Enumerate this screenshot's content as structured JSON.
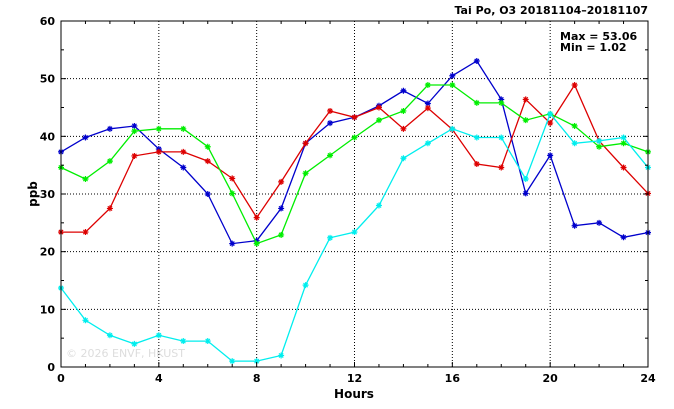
{
  "header": {
    "title": "Tai Po, O3 20181104–20181107"
  },
  "stats": {
    "max_label": "Max = 53.06",
    "min_label": "Min =  1.02"
  },
  "watermark": "© 2026  ENVF, HKUST",
  "chart_data": {
    "type": "line",
    "title": "Tai Po, O3 20181104–20181107",
    "xlabel": "Hours",
    "ylabel": "ppb",
    "xlim": [
      0,
      24
    ],
    "ylim": [
      0,
      60
    ],
    "xticks": [
      0,
      4,
      8,
      12,
      16,
      20,
      24
    ],
    "yticks": [
      0,
      10,
      20,
      30,
      40,
      50,
      60
    ],
    "grid": true,
    "marker": "asterisk",
    "x": [
      0,
      1,
      2,
      3,
      4,
      5,
      6,
      7,
      8,
      9,
      10,
      11,
      12,
      13,
      14,
      15,
      16,
      17,
      18,
      19,
      20,
      21,
      22,
      23,
      24
    ],
    "series": [
      {
        "color": "#0000cc",
        "values": [
          37.3,
          39.8,
          41.3,
          41.8,
          37.8,
          34.6,
          30.0,
          21.4,
          21.9,
          27.5,
          38.8,
          42.3,
          43.3,
          45.3,
          47.9,
          45.7,
          50.5,
          53.06,
          46.4,
          30.1,
          36.7,
          24.5,
          25.0,
          22.5,
          23.3
        ]
      },
      {
        "color": "#dd0000",
        "values": [
          23.4,
          23.4,
          27.5,
          36.6,
          37.3,
          37.3,
          35.7,
          32.7,
          25.9,
          32.1,
          38.8,
          44.4,
          43.3,
          45.0,
          41.3,
          44.9,
          41.2,
          35.2,
          34.6,
          46.4,
          42.3,
          48.9,
          39.2,
          34.6,
          30.1
        ]
      },
      {
        "color": "#00ee00",
        "values": [
          34.6,
          32.6,
          35.7,
          40.9,
          41.3,
          41.3,
          38.2,
          30.1,
          21.4,
          22.9,
          33.6,
          36.7,
          39.8,
          42.8,
          44.4,
          48.9,
          48.9,
          45.8,
          45.8,
          42.8,
          43.9,
          41.8,
          38.2,
          38.8,
          37.3
        ]
      },
      {
        "color": "#00eeee",
        "values": [
          13.7,
          8.1,
          5.5,
          4.0,
          5.5,
          4.5,
          4.5,
          1.02,
          1.02,
          2.0,
          14.2,
          22.4,
          23.4,
          28.0,
          36.2,
          38.8,
          41.3,
          39.8,
          39.8,
          32.6,
          43.9,
          38.8,
          39.2,
          39.8,
          34.6
        ]
      }
    ]
  }
}
